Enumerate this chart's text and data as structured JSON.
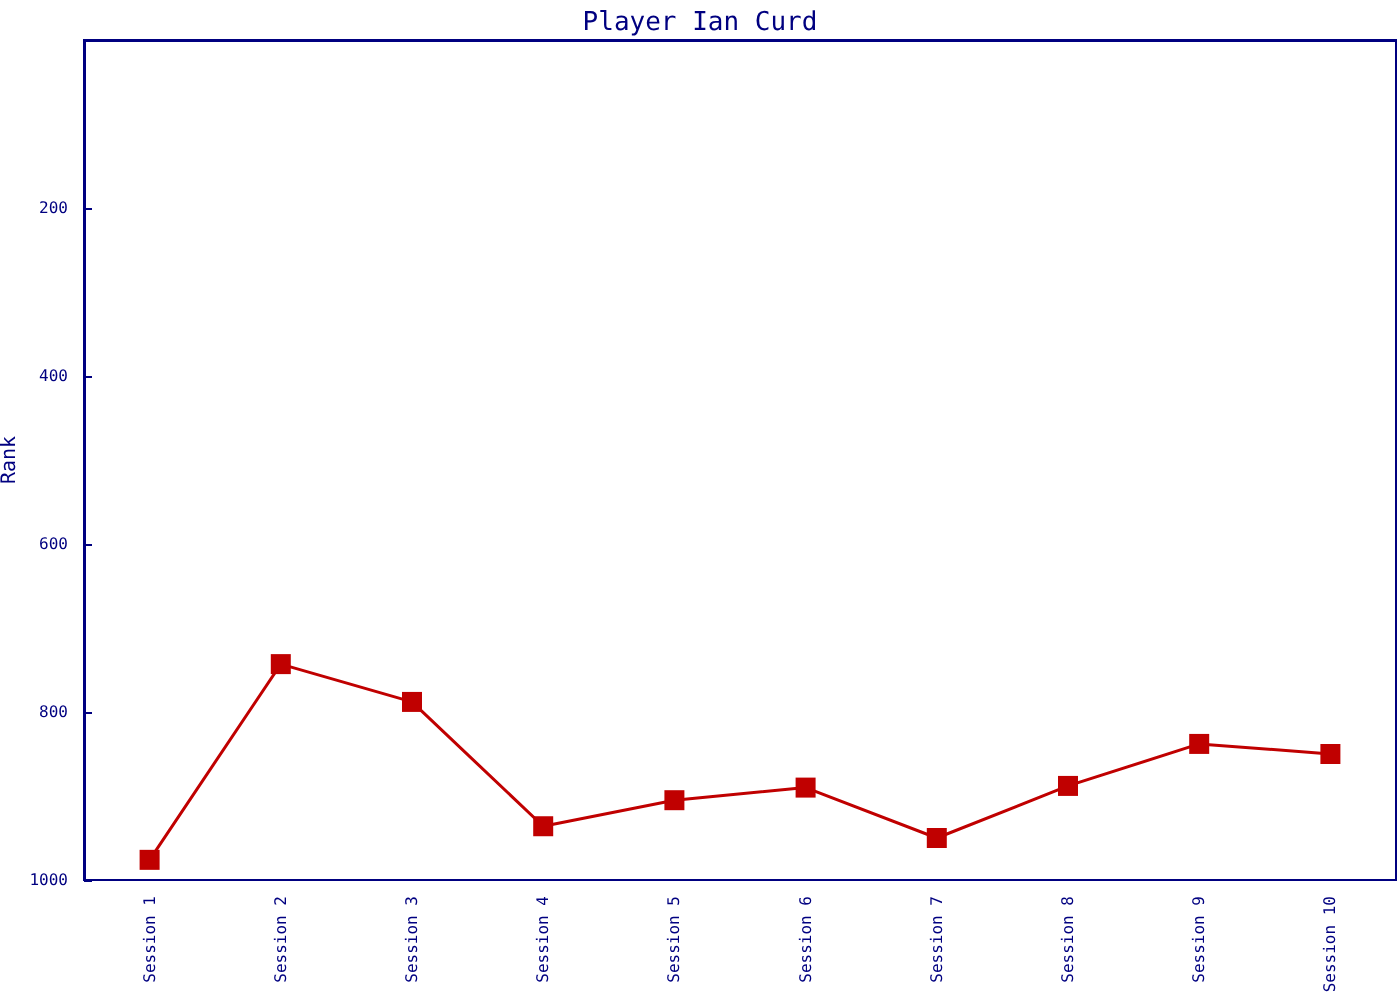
{
  "chart_data": {
    "type": "line",
    "title": "Player Ian Curd",
    "ylabel": "Rank",
    "categories": [
      "Session 1",
      "Session 2",
      "Session 3",
      "Session 4",
      "Session 5",
      "Session 6",
      "Session 7",
      "Session 8",
      "Session 9",
      "Session 10"
    ],
    "series": [
      {
        "color": "#c00000",
        "values": [
          976,
          743,
          788,
          936,
          905,
          890,
          950,
          888,
          838,
          850
        ]
      }
    ],
    "ylim": [
      1000,
      0
    ],
    "yticks": [
      200,
      400,
      600,
      800,
      1000
    ],
    "grid": false,
    "marker": "square",
    "line_style": "solid"
  }
}
